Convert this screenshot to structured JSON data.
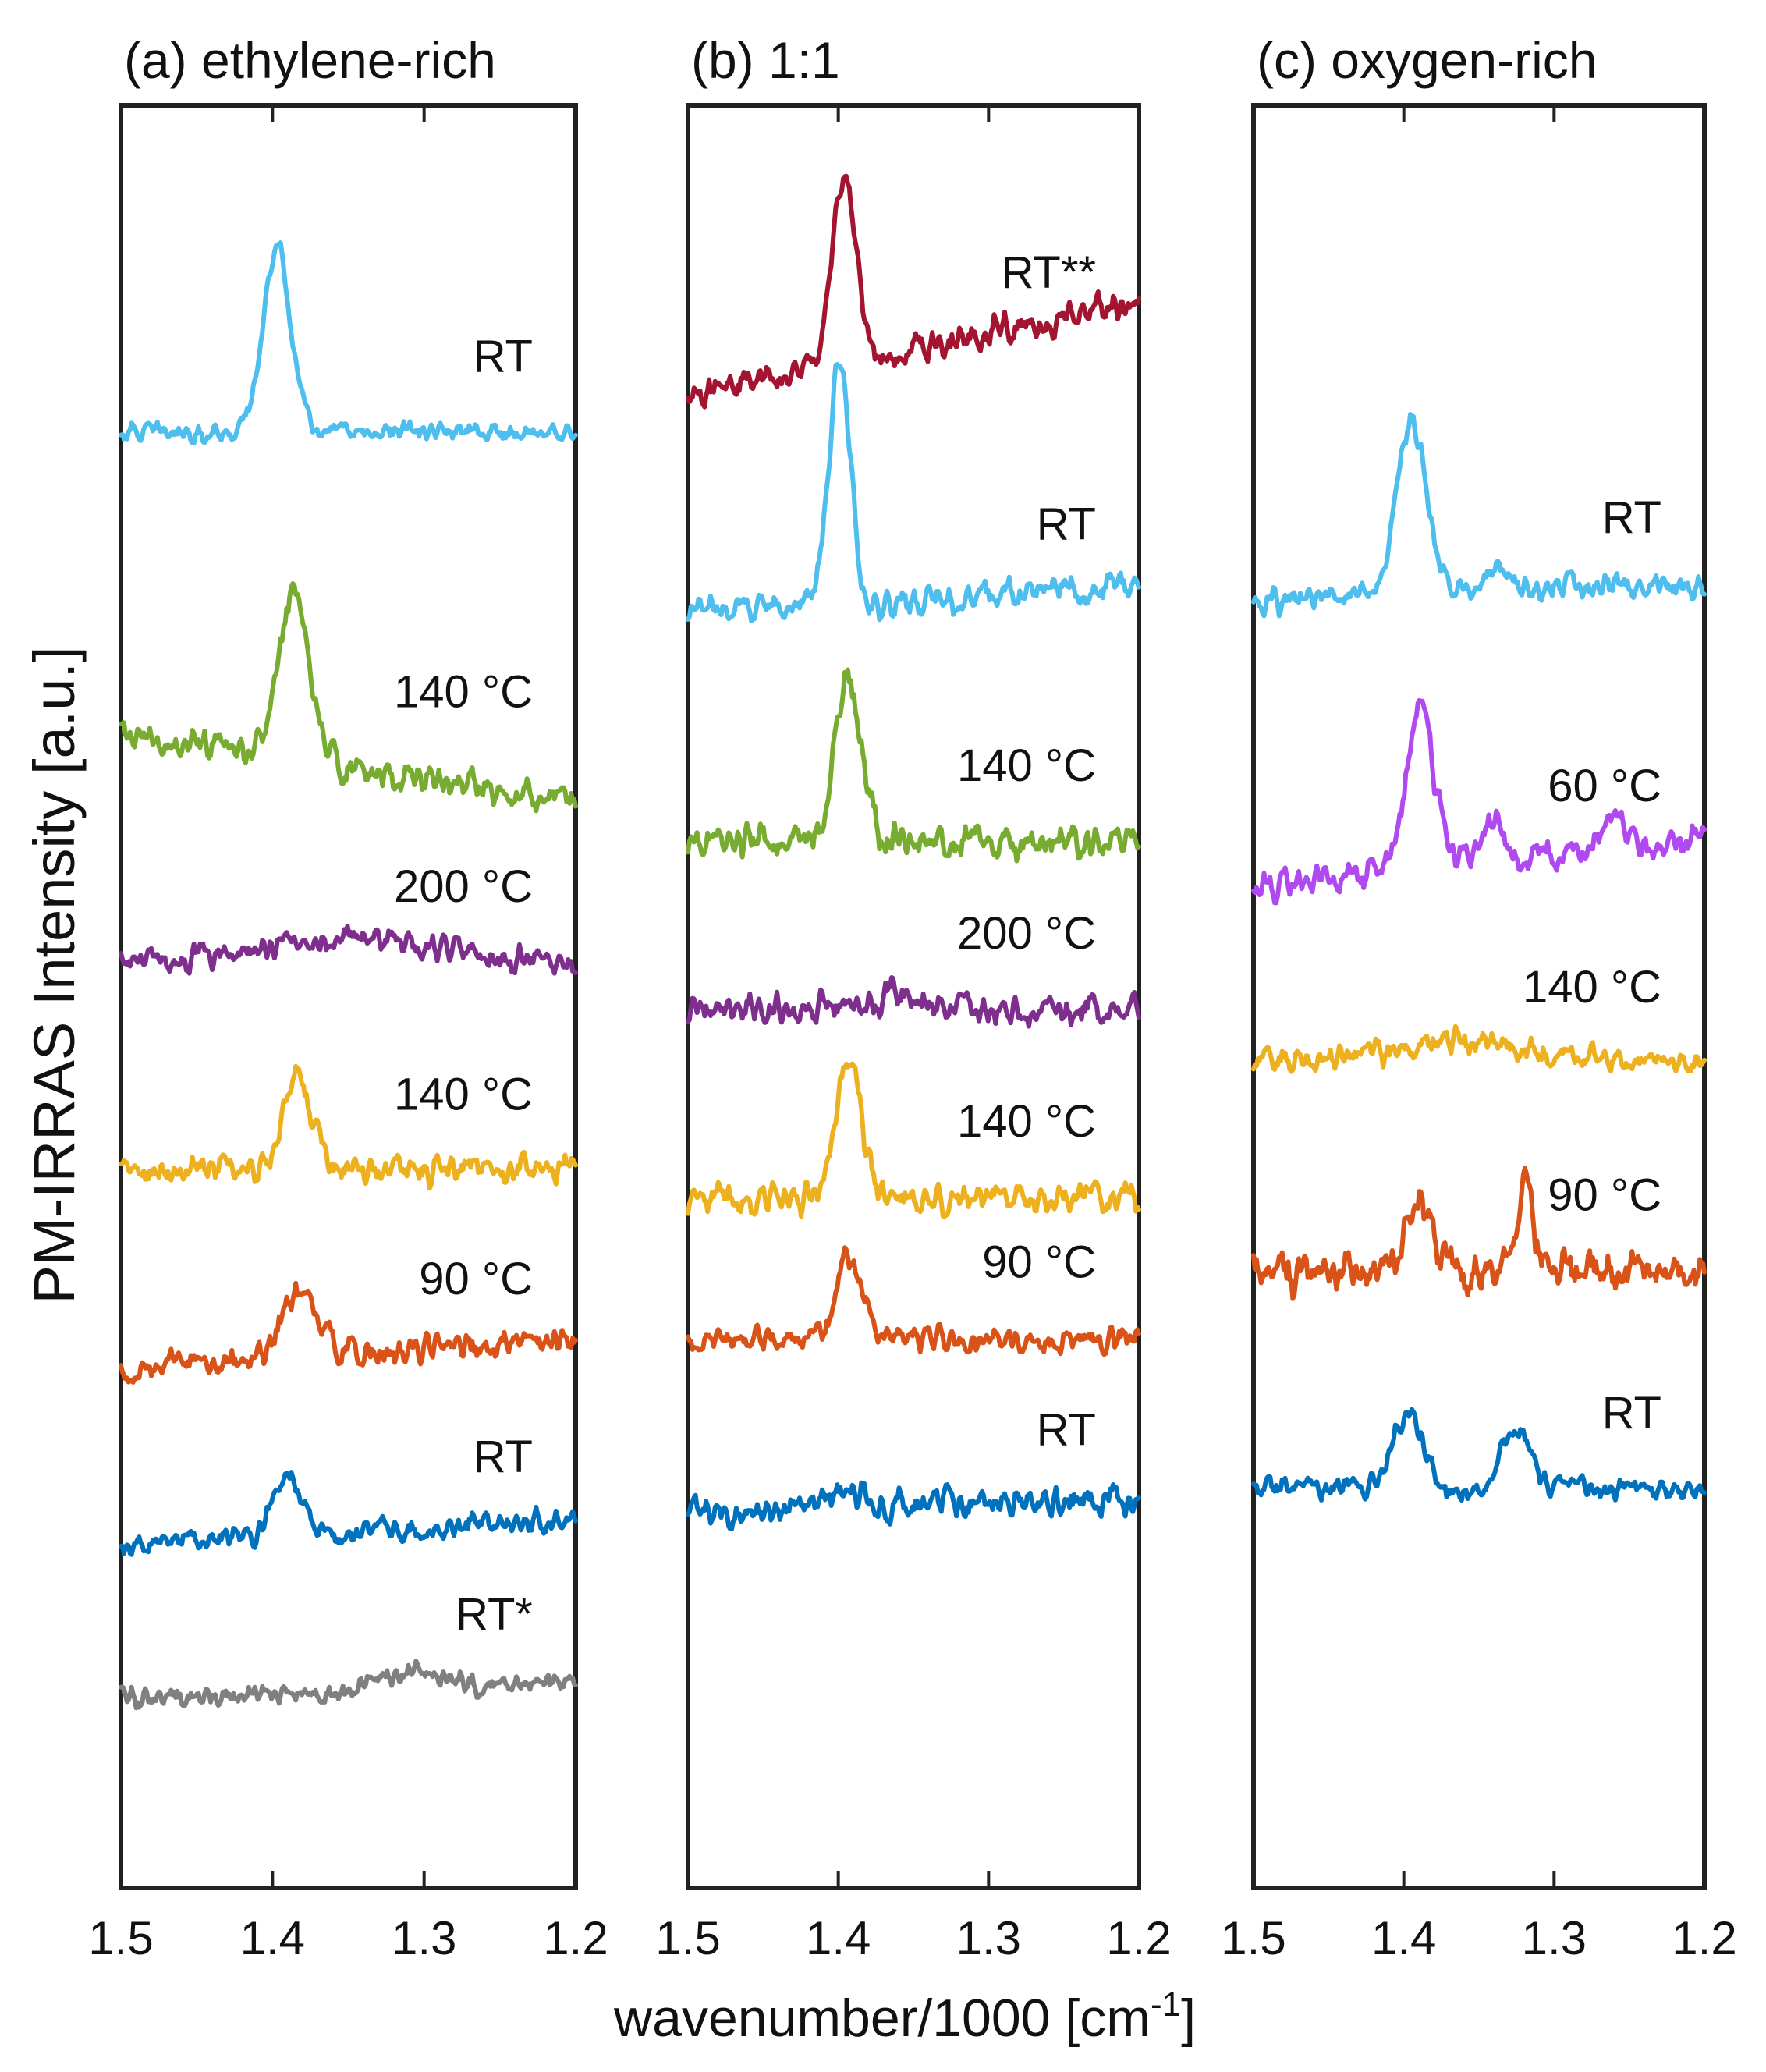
{
  "figure": {
    "ylabel": "PM-IRRAS Intensity [a.u.]",
    "xlabel_main": "wavenumber/1000 [cm",
    "xlabel_sup": "-1",
    "xlabel_end": "]"
  },
  "chart_data": [
    {
      "type": "line",
      "title": "(a) ethylene-rich",
      "xlim": [
        1.5,
        1.2
      ],
      "x_ticks": [
        "1.5",
        "1.4",
        "1.3",
        "1.2"
      ],
      "tick_values": [
        1.5,
        1.4,
        1.3,
        1.2
      ],
      "series": [
        {
          "name": "RT",
          "label": "RT",
          "color": "#4DBEEE",
          "offset": 0.8,
          "peaks": [
            [
              1.397,
              0.55,
              0.009
            ]
          ],
          "noise": 0.025,
          "slope": 0.0
        },
        {
          "name": "140 °C",
          "label": "140 °C",
          "color": "#77AC30",
          "offset": 1.8,
          "peaks": [
            [
              1.386,
              0.5,
              0.01
            ]
          ],
          "noise": 0.04,
          "slope": -0.18
        },
        {
          "name": "200 °C",
          "label": "200 °C",
          "color": "#7E2F8E",
          "offset": 2.38,
          "peaks": [
            [
              1.35,
              0.08,
              0.05
            ]
          ],
          "noise": 0.035,
          "slope": 0.0
        },
        {
          "name": "140 °C",
          "label": "140 °C",
          "color": "#EDB120",
          "offset": 3.0,
          "peaks": [
            [
              1.384,
              0.28,
              0.01
            ]
          ],
          "noise": 0.04,
          "slope": 0.0
        },
        {
          "name": "90 °C",
          "label": "90 °C",
          "color": "#D95319",
          "offset": 3.55,
          "peaks": [
            [
              1.383,
              0.2,
              0.012
            ]
          ],
          "noise": 0.04,
          "slope": 0.08
        },
        {
          "name": "RT",
          "label": "RT",
          "color": "#0072BD",
          "offset": 4.08,
          "peaks": [
            [
              1.39,
              0.18,
              0.009
            ]
          ],
          "noise": 0.03,
          "slope": 0.08
        },
        {
          "name": "RT*",
          "label": "RT*",
          "color": "#808080",
          "offset": 4.55,
          "peaks": [
            [
              1.31,
              0.05,
              0.015
            ]
          ],
          "noise": 0.03,
          "slope": 0.06
        }
      ]
    },
    {
      "type": "line",
      "title": "(b) 1:1",
      "xlim": [
        1.5,
        1.2
      ],
      "x_ticks": [
        "1.5",
        "1.4",
        "1.3",
        "1.2"
      ],
      "tick_values": [
        1.5,
        1.4,
        1.3,
        1.2
      ],
      "series": [
        {
          "name": "RT**",
          "label": "RT**",
          "color": "#A2142F",
          "offset": 0.55,
          "peaks": [
            [
              1.396,
              0.55,
              0.008
            ]
          ],
          "noise": 0.04,
          "slope": 0.28
        },
        {
          "name": "RT",
          "label": "RT",
          "color": "#4DBEEE",
          "offset": 1.3,
          "peaks": [
            [
              1.399,
              0.75,
              0.007
            ]
          ],
          "noise": 0.04,
          "slope": 0.08
        },
        {
          "name": "140 °C",
          "label": "140 °C",
          "color": "#77AC30",
          "offset": 2.02,
          "peaks": [
            [
              1.393,
              0.48,
              0.009
            ]
          ],
          "noise": 0.045,
          "slope": 0.0
        },
        {
          "name": "200 °C",
          "label": "200 °C",
          "color": "#7E2F8E",
          "offset": 2.52,
          "peaks": [
            [
              1.36,
              0.06,
              0.01
            ]
          ],
          "noise": 0.04,
          "slope": 0.0
        },
        {
          "name": "140 °C",
          "label": "140 °C",
          "color": "#EDB120",
          "offset": 3.08,
          "peaks": [
            [
              1.393,
              0.42,
              0.008
            ]
          ],
          "noise": 0.04,
          "slope": 0.0
        },
        {
          "name": "90 °C",
          "label": "90 °C",
          "color": "#D95319",
          "offset": 3.5,
          "peaks": [
            [
              1.393,
              0.24,
              0.008
            ]
          ],
          "noise": 0.035,
          "slope": 0.0
        },
        {
          "name": "RT",
          "label": "RT",
          "color": "#0072BD",
          "offset": 4.0,
          "peaks": [
            [
              1.4,
              0.07,
              0.01
            ]
          ],
          "noise": 0.04,
          "slope": 0.04
        }
      ]
    },
    {
      "type": "line",
      "title": "(c) oxygen-rich",
      "xlim": [
        1.5,
        1.2
      ],
      "x_ticks": [
        "1.5",
        "1.4",
        "1.3",
        "1.2"
      ],
      "tick_values": [
        1.5,
        1.4,
        1.3,
        1.2
      ],
      "series": [
        {
          "name": "RT",
          "label": "RT",
          "color": "#4DBEEE",
          "offset": 1.28,
          "peaks": [
            [
              1.395,
              0.52,
              0.01
            ],
            [
              1.34,
              0.08,
              0.008
            ]
          ],
          "noise": 0.035,
          "slope": 0.05
        },
        {
          "name": "60 °C",
          "label": "60 °C",
          "color": "#B04AF0",
          "offset": 2.08,
          "peaks": [
            [
              1.389,
              0.46,
              0.009
            ],
            [
              1.34,
              0.12,
              0.006
            ],
            [
              1.26,
              0.08,
              0.006
            ]
          ],
          "noise": 0.04,
          "slope": 0.15
        },
        {
          "name": "140 °C",
          "label": "140 °C",
          "color": "#EDB120",
          "offset": 2.68,
          "peaks": [
            [
              1.36,
              0.06,
              0.05
            ]
          ],
          "noise": 0.035,
          "slope": 0.0
        },
        {
          "name": "90 °C",
          "label": "90 °C",
          "color": "#D95319",
          "offset": 3.3,
          "peaks": [
            [
              1.389,
              0.22,
              0.008
            ],
            [
              1.32,
              0.22,
              0.007
            ]
          ],
          "noise": 0.06,
          "slope": 0.0
        },
        {
          "name": "RT",
          "label": "RT",
          "color": "#0072BD",
          "offset": 3.95,
          "peaks": [
            [
              1.397,
              0.22,
              0.01
            ],
            [
              1.325,
              0.18,
              0.01
            ]
          ],
          "noise": 0.03,
          "slope": 0.0
        }
      ]
    }
  ]
}
